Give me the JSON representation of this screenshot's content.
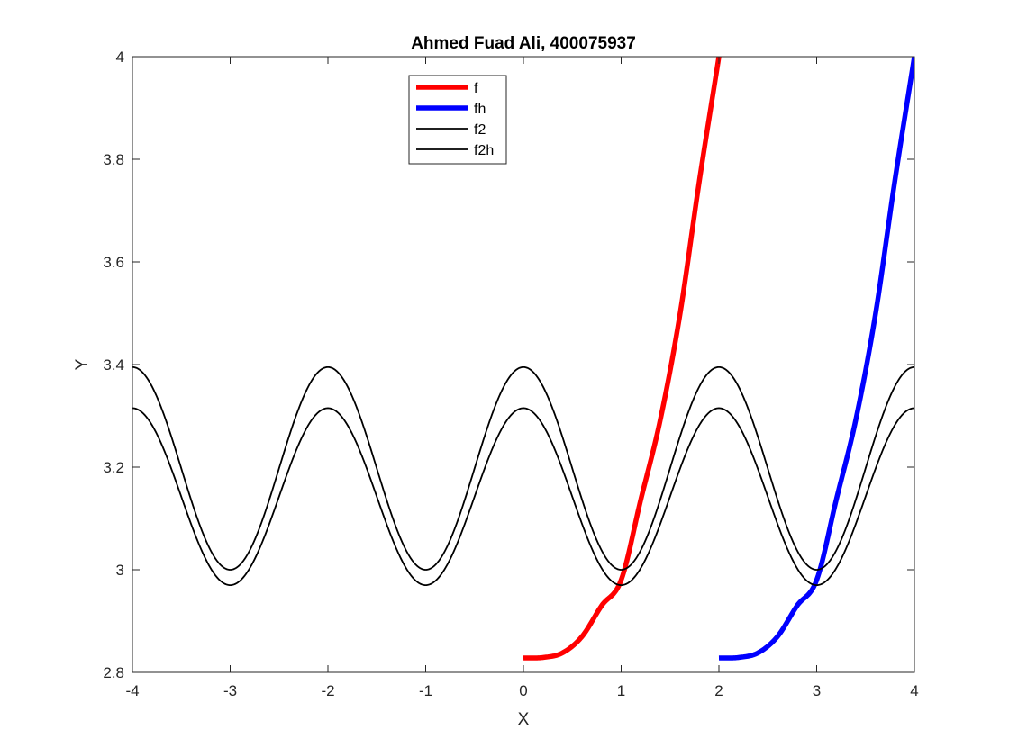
{
  "chart_data": {
    "type": "line",
    "title": "Ahmed Fuad Ali, 400075937",
    "xlabel": "X",
    "ylabel": "Y",
    "xlim": [
      -4,
      4
    ],
    "ylim": [
      2.8,
      4
    ],
    "xticks": [
      -4,
      -3,
      -2,
      -1,
      0,
      1,
      2,
      3,
      4
    ],
    "xtick_labels": [
      "-4",
      "-3",
      "-2",
      "-1",
      "0",
      "1",
      "2",
      "3",
      "4"
    ],
    "yticks": [
      2.8,
      3,
      3.2,
      3.4,
      3.6,
      3.8,
      4
    ],
    "ytick_labels": [
      "2.8",
      "3",
      "3.2",
      "3.4",
      "3.6",
      "3.8",
      "4"
    ],
    "grid": false,
    "legend_position": "top-center",
    "series": [
      {
        "name": "f",
        "color": "#ff0000",
        "x": [
          0,
          0.2,
          0.4,
          0.6,
          0.8,
          1.0,
          1.2,
          1.4,
          1.6,
          1.8,
          2.0
        ],
        "y": [
          2.828,
          2.829,
          2.838,
          2.87,
          2.93,
          2.98,
          3.136,
          3.292,
          3.496,
          3.758,
          4.0
        ]
      },
      {
        "name": "fh",
        "color": "#0000ff",
        "x": [
          2,
          2.2,
          2.4,
          2.6,
          2.8,
          3.0,
          3.2,
          3.4,
          3.6,
          3.8,
          4.0
        ],
        "y": [
          2.828,
          2.829,
          2.838,
          2.87,
          2.93,
          2.98,
          3.136,
          3.292,
          3.496,
          3.758,
          4.0
        ]
      },
      {
        "name": "f2",
        "color": "#000000",
        "x": [
          -4,
          -3.5,
          -3,
          -2.5,
          -2,
          -1.5,
          -1,
          -0.5,
          0,
          0.5,
          1,
          1.5,
          2,
          2.5,
          3,
          3.5,
          4
        ],
        "y": [
          3.395,
          3.2,
          3.0,
          3.2,
          3.395,
          3.2,
          3.0,
          3.2,
          3.395,
          3.2,
          3.0,
          3.2,
          3.395,
          3.2,
          3.0,
          3.2,
          3.395
        ]
      },
      {
        "name": "f2h",
        "color": "#000000",
        "x": [
          -4,
          -3.5,
          -3,
          -2.5,
          -2,
          -1.5,
          -1,
          -0.5,
          0,
          0.5,
          1,
          1.5,
          2,
          2.5,
          3,
          3.5,
          4
        ],
        "y": [
          3.315,
          3.16,
          2.97,
          3.16,
          3.315,
          3.16,
          2.97,
          3.16,
          3.315,
          3.16,
          2.97,
          3.16,
          3.315,
          3.16,
          2.97,
          3.16,
          3.315
        ]
      }
    ]
  }
}
